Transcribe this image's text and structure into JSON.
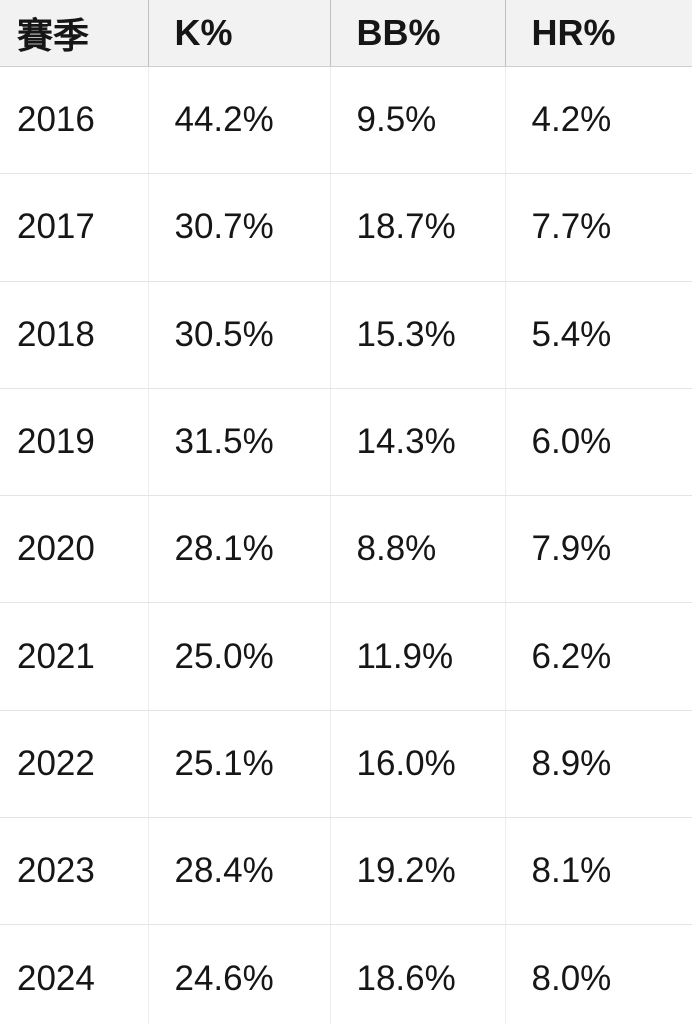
{
  "table": {
    "headers": [
      "賽季",
      "K%",
      "BB%",
      "HR%"
    ],
    "rows": [
      [
        "2016",
        "44.2%",
        "9.5%",
        "4.2%"
      ],
      [
        "2017",
        "30.7%",
        "18.7%",
        "7.7%"
      ],
      [
        "2018",
        "30.5%",
        "15.3%",
        "5.4%"
      ],
      [
        "2019",
        "31.5%",
        "14.3%",
        "6.0%"
      ],
      [
        "2020",
        "28.1%",
        "8.8%",
        "7.9%"
      ],
      [
        "2021",
        "25.0%",
        "11.9%",
        "6.2%"
      ],
      [
        "2022",
        "25.1%",
        "16.0%",
        "8.9%"
      ],
      [
        "2023",
        "28.4%",
        "19.2%",
        "8.1%"
      ],
      [
        "2024",
        "24.6%",
        "18.6%",
        "8.0%"
      ]
    ]
  },
  "colors": {
    "header_background": "#f2f2f2",
    "header_column_divider": "#c0c0c3",
    "header_bottom_border": "#cfcfd1",
    "row_divider": "#e4e4e5",
    "body_column_divider": "#ededee",
    "text": "#161617",
    "background": "#ffffff"
  },
  "chart_data": {
    "type": "table",
    "columns": [
      "賽季",
      "K%",
      "BB%",
      "HR%"
    ],
    "rows": [
      [
        "2016",
        "44.2%",
        "9.5%",
        "4.2%"
      ],
      [
        "2017",
        "30.7%",
        "18.7%",
        "7.7%"
      ],
      [
        "2018",
        "30.5%",
        "15.3%",
        "5.4%"
      ],
      [
        "2019",
        "31.5%",
        "14.3%",
        "6.0%"
      ],
      [
        "2020",
        "28.1%",
        "8.8%",
        "7.9%"
      ],
      [
        "2021",
        "25.0%",
        "11.9%",
        "6.2%"
      ],
      [
        "2022",
        "25.1%",
        "16.0%",
        "8.9%"
      ],
      [
        "2023",
        "28.4%",
        "19.2%",
        "8.1%"
      ],
      [
        "2024",
        "24.6%",
        "18.6%",
        "8.0%"
      ]
    ],
    "series": [
      {
        "name": "K%",
        "x": [
          2016,
          2017,
          2018,
          2019,
          2020,
          2021,
          2022,
          2023,
          2024
        ],
        "values": [
          44.2,
          30.7,
          30.5,
          31.5,
          28.1,
          25.0,
          25.1,
          28.4,
          24.6
        ]
      },
      {
        "name": "BB%",
        "x": [
          2016,
          2017,
          2018,
          2019,
          2020,
          2021,
          2022,
          2023,
          2024
        ],
        "values": [
          9.5,
          18.7,
          15.3,
          14.3,
          8.8,
          11.9,
          16.0,
          19.2,
          18.6
        ]
      },
      {
        "name": "HR%",
        "x": [
          2016,
          2017,
          2018,
          2019,
          2020,
          2021,
          2022,
          2023,
          2024
        ],
        "values": [
          4.2,
          7.7,
          5.4,
          6.0,
          7.9,
          6.2,
          8.9,
          8.1,
          8.0
        ]
      }
    ],
    "title": "",
    "xlabel": "賽季",
    "ylabel": ""
  }
}
